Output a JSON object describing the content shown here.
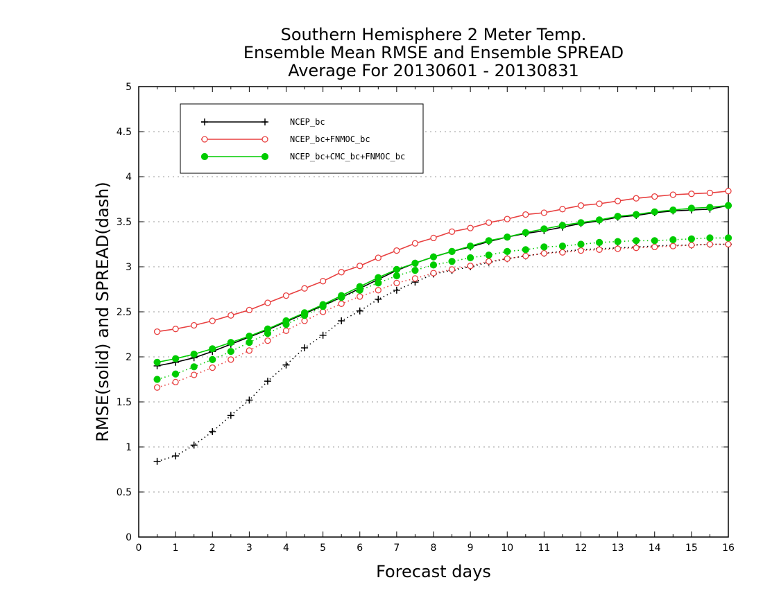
{
  "chart_data": {
    "type": "line",
    "title_lines": [
      "Southern Hemisphere 2 Meter Temp.",
      "Ensemble Mean RMSE and Ensemble SPREAD",
      "Average For 20130601 - 20130831"
    ],
    "xlabel": "Forecast days",
    "ylabel": "RMSE(solid) and SPREAD(dash)",
    "xlim": [
      0,
      16
    ],
    "ylim": [
      0,
      5
    ],
    "xticks": [
      "0",
      "1",
      "2",
      "3",
      "4",
      "5",
      "6",
      "7",
      "8",
      "9",
      "10",
      "11",
      "12",
      "13",
      "14",
      "15",
      "16"
    ],
    "yticks": [
      "0",
      "0.5",
      "1",
      "1.5",
      "2",
      "2.5",
      "3",
      "3.5",
      "4",
      "4.5",
      "5"
    ],
    "grid": true,
    "legend_position": "top-left",
    "x": [
      0.5,
      1,
      1.5,
      2,
      2.5,
      3,
      3.5,
      4,
      4.5,
      5,
      5.5,
      6,
      6.5,
      7,
      7.5,
      8,
      8.5,
      9,
      9.5,
      10,
      10.5,
      11,
      11.5,
      12,
      12.5,
      13,
      13.5,
      14,
      14.5,
      15,
      15.5,
      16
    ],
    "series": [
      {
        "name": "NCEP_bc",
        "color": "#000000",
        "marker": "plus",
        "rmse": [
          1.9,
          1.94,
          1.99,
          2.06,
          2.14,
          2.22,
          2.3,
          2.39,
          2.48,
          2.57,
          2.66,
          2.76,
          2.86,
          2.96,
          3.04,
          3.11,
          3.17,
          3.22,
          3.28,
          3.33,
          3.37,
          3.4,
          3.44,
          3.48,
          3.51,
          3.55,
          3.57,
          3.6,
          3.62,
          3.63,
          3.64,
          3.68
        ],
        "spread": [
          0.84,
          0.9,
          1.02,
          1.17,
          1.35,
          1.52,
          1.73,
          1.91,
          2.1,
          2.24,
          2.4,
          2.51,
          2.64,
          2.74,
          2.83,
          2.92,
          2.96,
          3.0,
          3.05,
          3.09,
          3.12,
          3.15,
          3.17,
          3.19,
          3.2,
          3.21,
          3.22,
          3.23,
          3.24,
          3.24,
          3.25,
          3.25
        ]
      },
      {
        "name": "NCEP_bc+FNMOC_bc",
        "color": "#e84040",
        "marker": "open-circle",
        "rmse": [
          2.28,
          2.31,
          2.35,
          2.4,
          2.46,
          2.52,
          2.6,
          2.68,
          2.76,
          2.84,
          2.94,
          3.01,
          3.1,
          3.18,
          3.26,
          3.32,
          3.39,
          3.43,
          3.49,
          3.53,
          3.58,
          3.6,
          3.64,
          3.68,
          3.7,
          3.73,
          3.76,
          3.78,
          3.8,
          3.81,
          3.82,
          3.84
        ],
        "spread": [
          1.66,
          1.72,
          1.8,
          1.88,
          1.97,
          2.07,
          2.18,
          2.29,
          2.4,
          2.5,
          2.59,
          2.67,
          2.74,
          2.82,
          2.87,
          2.93,
          2.97,
          3.01,
          3.06,
          3.09,
          3.12,
          3.15,
          3.16,
          3.18,
          3.19,
          3.2,
          3.21,
          3.22,
          3.23,
          3.24,
          3.25,
          3.25
        ]
      },
      {
        "name": "NCEP_bc+CMC_bc+FNMOC_bc",
        "color": "#00cc00",
        "marker": "filled-circle",
        "rmse": [
          1.94,
          1.98,
          2.03,
          2.09,
          2.16,
          2.23,
          2.31,
          2.4,
          2.49,
          2.58,
          2.68,
          2.78,
          2.88,
          2.97,
          3.04,
          3.11,
          3.17,
          3.23,
          3.29,
          3.33,
          3.38,
          3.42,
          3.46,
          3.49,
          3.52,
          3.56,
          3.58,
          3.61,
          3.63,
          3.65,
          3.66,
          3.68
        ],
        "spread": [
          1.75,
          1.81,
          1.89,
          1.97,
          2.06,
          2.16,
          2.26,
          2.36,
          2.46,
          2.56,
          2.66,
          2.74,
          2.82,
          2.9,
          2.96,
          3.02,
          3.06,
          3.1,
          3.13,
          3.17,
          3.19,
          3.22,
          3.23,
          3.25,
          3.27,
          3.28,
          3.29,
          3.29,
          3.3,
          3.31,
          3.32,
          3.32
        ]
      }
    ]
  }
}
